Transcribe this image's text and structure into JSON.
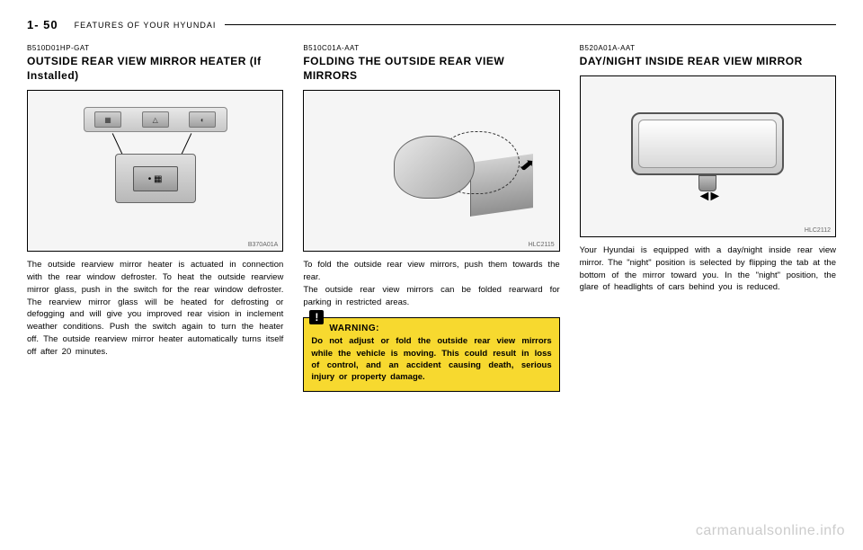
{
  "header": {
    "page_label": "1-  50",
    "section": "FEATURES OF YOUR HYUNDAI"
  },
  "col1": {
    "code": "B510D01HP-GAT",
    "heading": "OUTSIDE REAR VIEW MIRROR HEATER (If Installed)",
    "fig_label": "B370A01A",
    "body": "The outside rearview mirror heater is actuated in connection with the rear window defroster. To heat the outside rearview mirror glass, push in the switch for the rear window defroster. The rearview mirror glass will be heated for defrosting or defogging and will give you improved rear vision in inclement weather conditions. Push the switch again to turn the heater off. The outside rearview mirror heater automatically turns itself off after 20 minutes."
  },
  "col2": {
    "code": "B510C01A-AAT",
    "heading": "FOLDING THE OUTSIDE REAR VIEW MIRRORS",
    "fig_label": "HLC2115",
    "body": "To fold the outside rear view mirrors, push them towards the rear.\nThe outside rear view mirrors can be folded rearward for parking in restricted areas.",
    "warning_title": "WARNING:",
    "warning_text": "Do not adjust or fold the outside rear view mirrors while the vehicle is moving. This could result in loss of control, and an accident causing death, serious injury or property damage."
  },
  "col3": {
    "code": "B520A01A-AAT",
    "heading": "DAY/NIGHT INSIDE REAR VIEW MIRROR",
    "fig_label": "HLC2112",
    "body": "Your Hyundai is equipped with a day/night inside rear view mirror. The \"night\" position is selected by flipping the tab at the bottom of the mirror toward you. In the \"night\" position, the glare of headlights of cars behind you is reduced."
  },
  "watermark": "carmanualsonline.info"
}
